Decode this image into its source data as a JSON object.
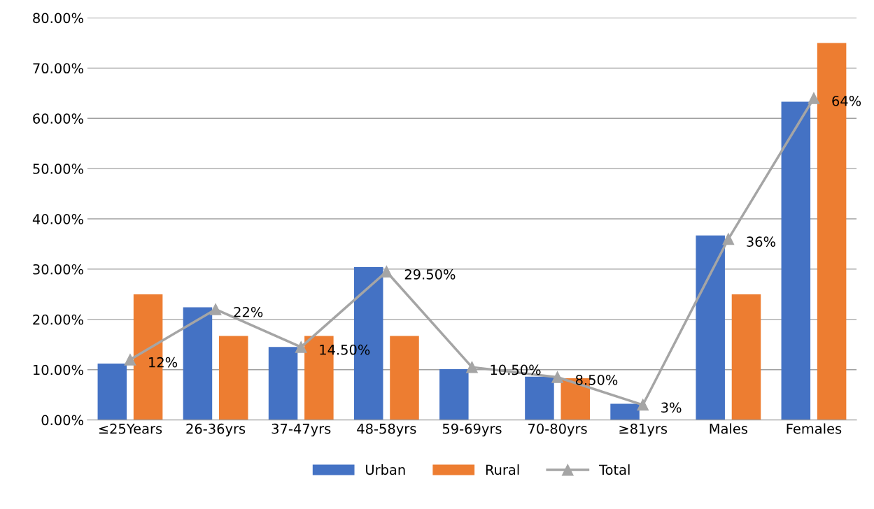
{
  "chart_data": {
    "type": "bar",
    "categories": [
      "≤25Years",
      "26-36yrs",
      "37-47yrs",
      "48-58yrs",
      "59-69yrs",
      "70-80yrs",
      "≥81yrs",
      "Males",
      "Females"
    ],
    "series": [
      {
        "name": "Urban",
        "color": "#4472c4",
        "values": [
          11.2,
          22.4,
          14.5,
          30.4,
          10.1,
          8.6,
          3.2,
          36.7,
          63.3
        ]
      },
      {
        "name": "Rural",
        "color": "#ed7d31",
        "values": [
          25,
          16.7,
          16.7,
          16.7,
          null,
          8.3,
          null,
          25,
          75
        ]
      },
      {
        "name": "Total",
        "type": "line",
        "color": "#a5a5a5",
        "marker": "triangle",
        "values": [
          12,
          22,
          14.5,
          29.5,
          10.5,
          8.5,
          3,
          36,
          64
        ],
        "value_labels": [
          "12%",
          "22%",
          "14.50%",
          "29.50%",
          "10.50%",
          "8.50%",
          "3%",
          "36%",
          "64%"
        ]
      }
    ],
    "ylim": [
      0,
      80
    ],
    "yticks": [
      {
        "value": 0,
        "label": "0.00%"
      },
      {
        "value": 10,
        "label": "10.00%"
      },
      {
        "value": 20,
        "label": "20.00%"
      },
      {
        "value": 30,
        "label": "30.00%"
      },
      {
        "value": 40,
        "label": "40.00%"
      },
      {
        "value": 50,
        "label": "50.00%"
      },
      {
        "value": 60,
        "label": "60.00%"
      },
      {
        "value": 70,
        "label": "70.00%"
      },
      {
        "value": 80,
        "label": "80.00%"
      }
    ],
    "grid": "y",
    "legend": "bottom"
  }
}
